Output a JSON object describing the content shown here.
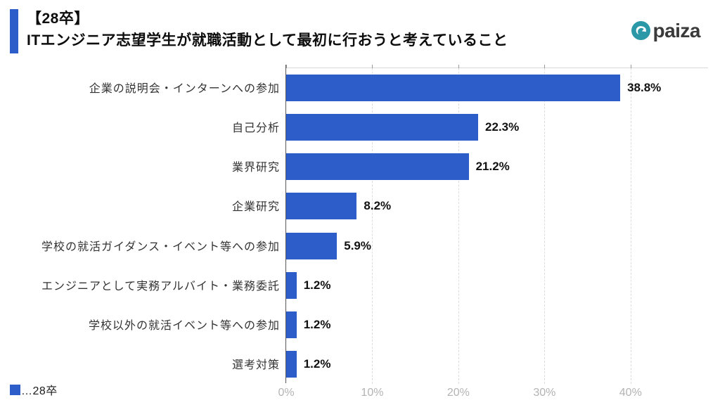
{
  "header": {
    "title_line1": "【28卒】",
    "title_line2": "ITエンジニア志望学生が就職活動として最初に行おうと考えていること",
    "accent_color": "#2d5dc8",
    "logo": {
      "text": "paiza",
      "icon": "paiza-circle-icon",
      "icon_color": "#2a98a6",
      "text_color": "#3a3a3a"
    }
  },
  "chart_data": {
    "type": "bar",
    "orientation": "horizontal",
    "title": "【28卒】ITエンジニア志望学生が就職活動として最初に行おうと考えていること",
    "categories": [
      "企業の説明会・インターンへの参加",
      "自己分析",
      "業界研究",
      "企業研究",
      "学校の就活ガイダンス・イベント等への参加",
      "エンジニアとして実務アルバイト・業務委託",
      "学校以外の就活イベント等への参加",
      "選考対策"
    ],
    "series": [
      {
        "name": "28卒",
        "values": [
          38.8,
          22.3,
          21.2,
          8.2,
          5.9,
          1.2,
          1.2,
          1.2
        ]
      }
    ],
    "value_labels": [
      "38.8%",
      "22.3%",
      "21.2%",
      "8.2%",
      "5.9%",
      "1.2%",
      "1.2%",
      "1.2%"
    ],
    "x_ticks": [
      {
        "label": "0%",
        "value": 0
      },
      {
        "label": "10%",
        "value": 10
      },
      {
        "label": "20%",
        "value": 20
      },
      {
        "label": "30%",
        "value": 30
      },
      {
        "label": "40%",
        "value": 40
      }
    ],
    "xlim": [
      0,
      49
    ],
    "xlabel": "",
    "ylabel": "",
    "grid": "dashed-vertical",
    "bar_color": "#2d5dc8",
    "legend": {
      "label": "…28卒",
      "position": "bottom-left",
      "marker_color": "#2d5dc8"
    }
  }
}
